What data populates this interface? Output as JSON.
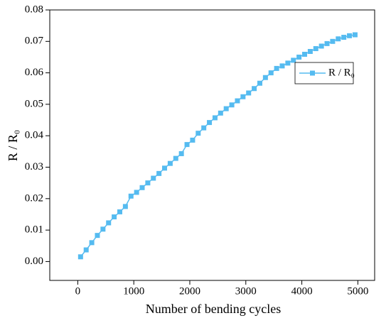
{
  "chart_data": {
    "type": "line",
    "xlabel": "Number of bending cycles",
    "ylabel": "R / R₀",
    "x": [
      50,
      150,
      250,
      350,
      450,
      550,
      650,
      750,
      850,
      950,
      1050,
      1150,
      1250,
      1350,
      1450,
      1550,
      1650,
      1750,
      1850,
      1950,
      2050,
      2150,
      2250,
      2350,
      2450,
      2550,
      2650,
      2750,
      2850,
      2950,
      3050,
      3150,
      3250,
      3350,
      3450,
      3550,
      3650,
      3750,
      3850,
      3950,
      4050,
      4150,
      4250,
      4350,
      4450,
      4550,
      4650,
      4750,
      4850,
      4950
    ],
    "series": [
      {
        "name": "R / R₀",
        "color": "#55bbf0",
        "values": [
          0.0015,
          0.0037,
          0.006,
          0.0083,
          0.0103,
          0.0123,
          0.0142,
          0.0158,
          0.0175,
          0.0208,
          0.022,
          0.0235,
          0.025,
          0.0265,
          0.028,
          0.0297,
          0.0312,
          0.0328,
          0.0343,
          0.0372,
          0.0386,
          0.0408,
          0.0425,
          0.0442,
          0.0457,
          0.0472,
          0.0486,
          0.0498,
          0.0511,
          0.0524,
          0.0536,
          0.055,
          0.0567,
          0.0585,
          0.06,
          0.0614,
          0.0622,
          0.0631,
          0.064,
          0.065,
          0.0659,
          0.0668,
          0.0677,
          0.0685,
          0.0693,
          0.07,
          0.0708,
          0.0713,
          0.0718,
          0.0721
        ]
      }
    ],
    "xlim": [
      -500,
      5300
    ],
    "xticks": [
      0,
      1000,
      2000,
      3000,
      4000,
      5000
    ],
    "ylim": [
      -0.006,
      0.08
    ],
    "yticks": [
      {
        "value": 0,
        "label": "0.00"
      },
      {
        "value": 0.01,
        "label": "0.01"
      },
      {
        "value": 0.02,
        "label": "0.02"
      },
      {
        "value": 0.03,
        "label": "0.03"
      },
      {
        "value": 0.04,
        "label": "0.04"
      },
      {
        "value": 0.05,
        "label": "0.05"
      },
      {
        "value": 0.06,
        "label": "0.06"
      },
      {
        "value": 0.07,
        "label": "0.07"
      },
      {
        "value": 0.08,
        "label": "0.08"
      }
    ],
    "legend": "upper right"
  }
}
